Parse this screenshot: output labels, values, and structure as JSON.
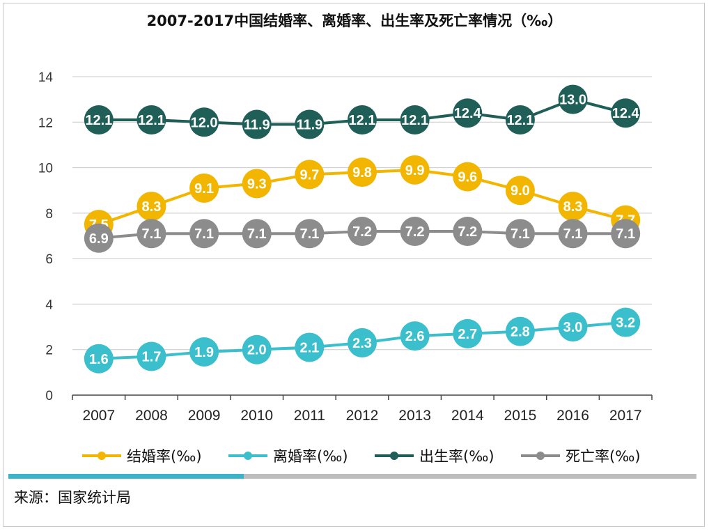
{
  "chart_data": {
    "type": "line",
    "title": "2007-2017中国结婚率、离婚率、出生率及死亡率情况（‰）",
    "categories": [
      "2007",
      "2008",
      "2009",
      "2010",
      "2011",
      "2012",
      "2013",
      "2014",
      "2015",
      "2016",
      "2017"
    ],
    "ylim": [
      0,
      14
    ],
    "yticks": [
      0,
      2,
      4,
      6,
      8,
      10,
      12,
      14
    ],
    "grid": true,
    "legend_position": "bottom",
    "series": [
      {
        "name": "结婚率(‰)",
        "color": "#f2b600",
        "values": [
          7.5,
          8.3,
          9.1,
          9.3,
          9.7,
          9.8,
          9.9,
          9.6,
          9.0,
          8.3,
          7.7
        ]
      },
      {
        "name": "离婚率(‰)",
        "color": "#3bbfcd",
        "values": [
          1.6,
          1.7,
          1.9,
          2.0,
          2.1,
          2.3,
          2.6,
          2.7,
          2.8,
          3.0,
          3.2
        ]
      },
      {
        "name": "出生率(‰)",
        "color": "#1f5f57",
        "values": [
          12.1,
          12.1,
          12.0,
          11.9,
          11.9,
          12.1,
          12.1,
          12.4,
          12.1,
          13.0,
          12.4
        ]
      },
      {
        "name": "死亡率(‰)",
        "color": "#8c8c8c",
        "values": [
          6.9,
          7.1,
          7.1,
          7.1,
          7.1,
          7.2,
          7.2,
          7.2,
          7.1,
          7.1,
          7.1
        ]
      }
    ]
  },
  "footer": {
    "source": "来源：国家统计局"
  }
}
